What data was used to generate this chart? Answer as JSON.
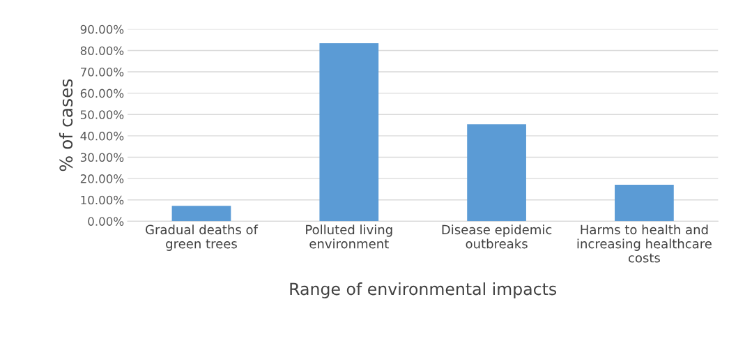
{
  "chart_data": {
    "type": "bar",
    "xlabel": "Range of environmental impacts",
    "ylabel": "% of cases",
    "categories": [
      "Gradual deaths of\ngreen trees",
      "Polluted living\nenvironment",
      "Disease epidemic\noutbreaks",
      "Harms to health and\nincreasing healthcare\ncosts"
    ],
    "values": [
      7.2,
      83.4,
      45.4,
      17.1
    ],
    "color": "#5b9bd5",
    "ylim": [
      0,
      90
    ],
    "yticks": [
      {
        "value": 0,
        "label": "0.00%"
      },
      {
        "value": 10,
        "label": "10.00%"
      },
      {
        "value": 20,
        "label": "20.00%"
      },
      {
        "value": 30,
        "label": "30.00%"
      },
      {
        "value": 40,
        "label": "40.00%"
      },
      {
        "value": 50,
        "label": "50.00%"
      },
      {
        "value": 60,
        "label": "60.00%"
      },
      {
        "value": 70,
        "label": "70.00%"
      },
      {
        "value": 80,
        "label": "80.00%"
      },
      {
        "value": 90,
        "label": "90.00%"
      }
    ],
    "grid": "y"
  }
}
